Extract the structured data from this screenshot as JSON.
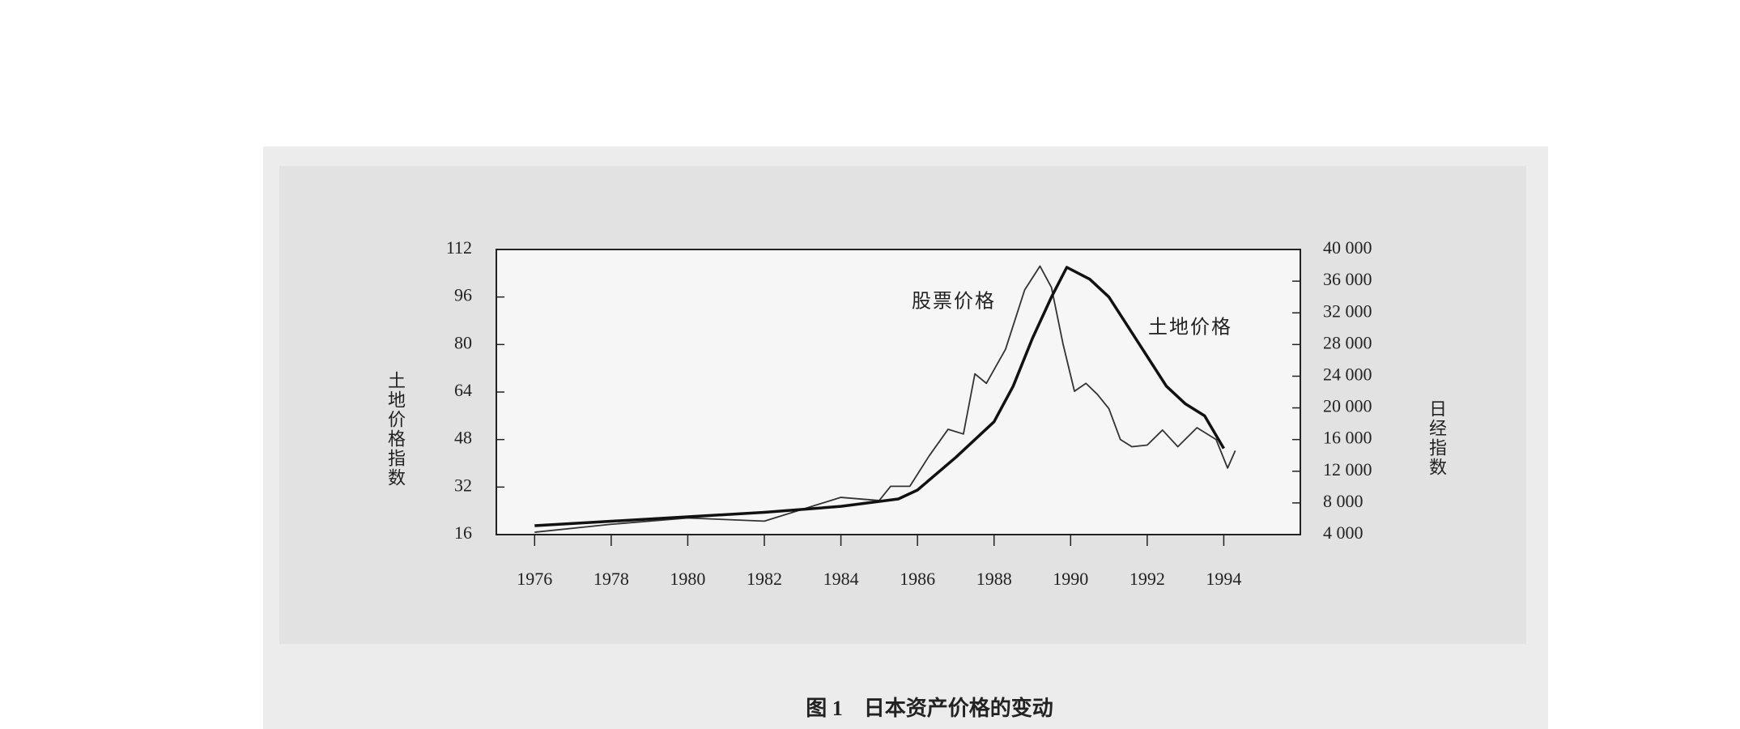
{
  "chart_data": {
    "type": "line",
    "caption": "图 1　日本资产价格的变动",
    "ylabel": "土地价格指数",
    "y2label": "日经指数",
    "xlim": [
      1975,
      1996
    ],
    "xticks": [
      1976,
      1978,
      1980,
      1982,
      1984,
      1986,
      1988,
      1990,
      1992,
      1994
    ],
    "ylim": [
      16,
      112
    ],
    "yticks": [
      16,
      32,
      48,
      64,
      80,
      96,
      112
    ],
    "y2lim": [
      4000,
      40000
    ],
    "y2ticks": [
      {
        "value": 4000,
        "label": "4 000"
      },
      {
        "value": 8000,
        "label": "8 000"
      },
      {
        "value": 12000,
        "label": "12 000"
      },
      {
        "value": 16000,
        "label": "16 000"
      },
      {
        "value": 20000,
        "label": "20 000"
      },
      {
        "value": 24000,
        "label": "24 000"
      },
      {
        "value": 28000,
        "label": "28 000"
      },
      {
        "value": 32000,
        "label": "32 000"
      },
      {
        "value": 36000,
        "label": "36 000"
      },
      {
        "value": 40000,
        "label": "40 000"
      }
    ],
    "series": [
      {
        "name": "股票价格",
        "color": "#333333",
        "axis": "y2",
        "x": [
          1976,
          1978,
          1980,
          1982,
          1984,
          1985,
          1985.3,
          1985.8,
          1986.3,
          1986.8,
          1987.2,
          1987.5,
          1987.8,
          1988.3,
          1988.8,
          1989.2,
          1989.5,
          1989.8,
          1990.1,
          1990.4,
          1990.7,
          1991,
          1991.3,
          1991.6,
          1992,
          1992.4,
          1992.8,
          1993.3,
          1993.8,
          1994.1,
          1994.3
        ],
        "values": [
          4300,
          5300,
          6100,
          5700,
          8700,
          8300,
          10100,
          10100,
          13900,
          17300,
          16700,
          24300,
          23100,
          27400,
          34900,
          37900,
          35200,
          28100,
          22100,
          23100,
          21700,
          19900,
          16000,
          15100,
          15300,
          17200,
          15100,
          17500,
          16000,
          12400,
          14600
        ]
      },
      {
        "name": "土地价格",
        "color": "#111111",
        "axis": "y",
        "x": [
          1976,
          1978,
          1980,
          1982,
          1984,
          1985.5,
          1986,
          1987,
          1988,
          1988.5,
          1989,
          1989.5,
          1989.9,
          1990.5,
          1991,
          1991.5,
          1992,
          1992.5,
          1993,
          1993.5,
          1994
        ],
        "values": [
          19,
          20.5,
          22,
          23.5,
          25.5,
          28,
          31,
          42,
          54,
          66,
          82,
          96,
          106,
          102,
          96,
          86,
          76,
          66,
          60,
          56,
          45
        ]
      }
    ]
  }
}
